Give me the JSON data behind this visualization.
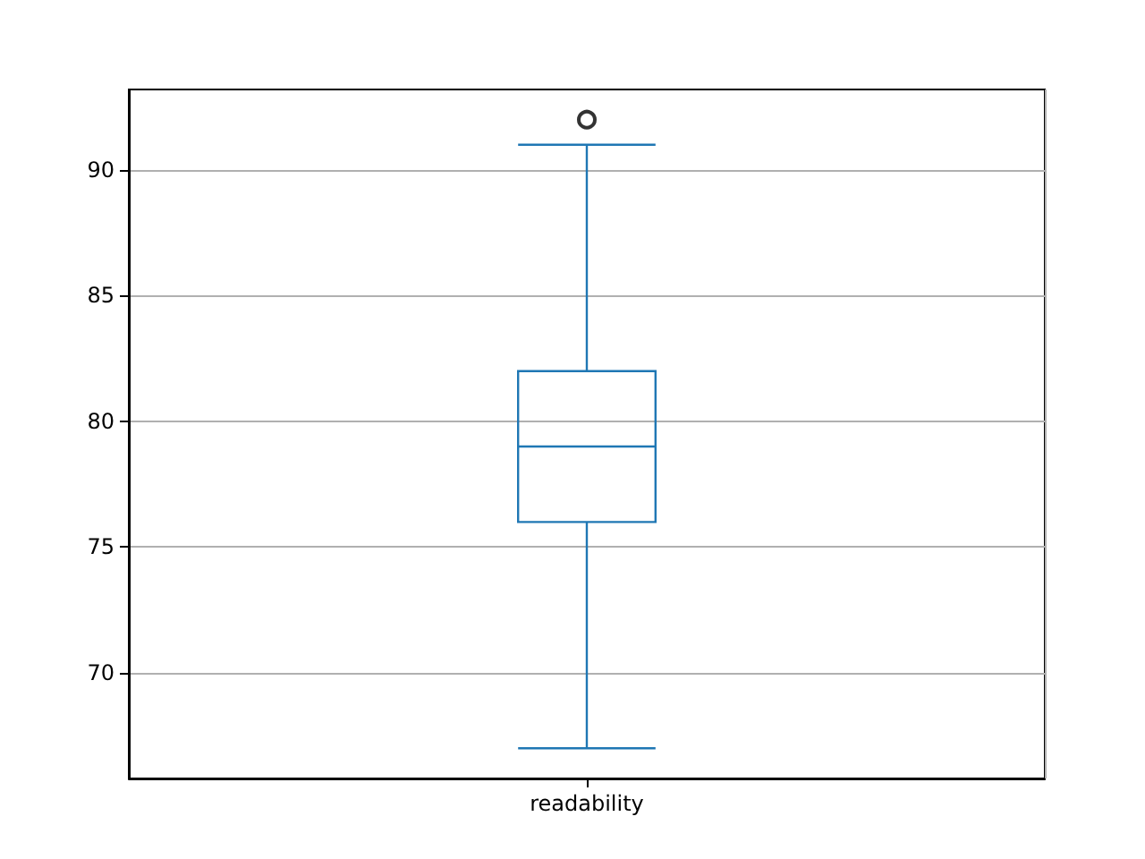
{
  "chart_data": {
    "type": "box",
    "categories": [
      "readability"
    ],
    "boxes": [
      {
        "low": 67,
        "q1": 76,
        "median": 79,
        "q3": 82,
        "high": 91,
        "outliers": [
          92
        ]
      }
    ],
    "color": "#1f77b4",
    "ylim": [
      65.8,
      93.2
    ],
    "yticks": [
      70,
      75,
      80,
      85,
      90
    ],
    "grid": true
  }
}
